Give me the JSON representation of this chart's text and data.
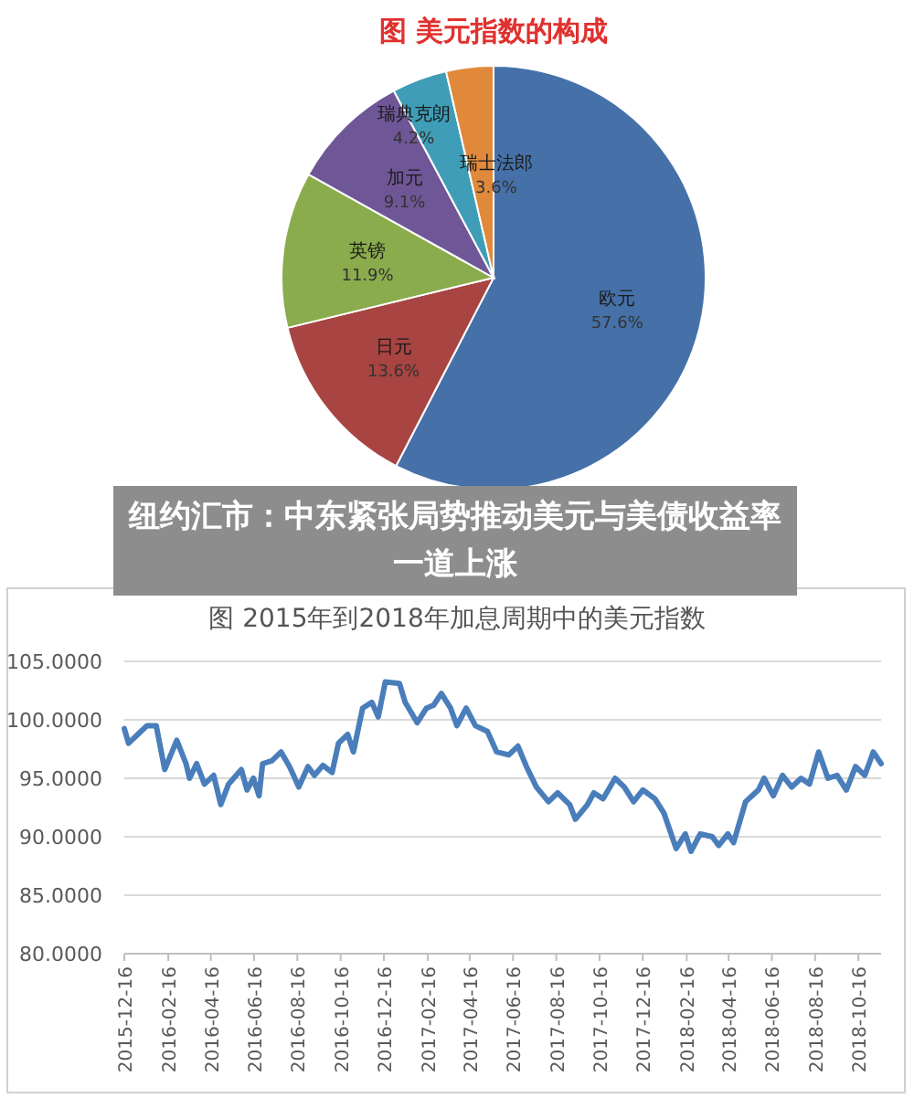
{
  "chart_data": [
    {
      "type": "pie",
      "title": "图 美元指数的构成",
      "categories": [
        "欧元",
        "日元",
        "英镑",
        "加元",
        "瑞典克朗",
        "瑞士法郎"
      ],
      "values": [
        57.6,
        13.6,
        11.9,
        9.1,
        4.2,
        3.6
      ],
      "colors": [
        "#4571a8",
        "#a84442",
        "#8aac4c",
        "#6f5797",
        "#3f9db7",
        "#e1893b"
      ],
      "value_labels": [
        "57.6%",
        "13.6%",
        "11.9%",
        "9.1%",
        "4.2%",
        "3.6%"
      ]
    },
    {
      "type": "line",
      "title": "图 2015年到2018年加息周期中的美元指数",
      "annotations": [
        "纽约汇市：中东紧张局势推动美元与美债收益率一道上涨"
      ],
      "grid": "y",
      "xlim": [
        "2015-12-16",
        "2018-11-17"
      ],
      "ylim": [
        80,
        105
      ],
      "yticks": [
        {
          "value": 80,
          "label": "80.0000"
        },
        {
          "value": 85,
          "label": "85.0000"
        },
        {
          "value": 90,
          "label": "90.0000"
        },
        {
          "value": 95,
          "label": "95.0000"
        },
        {
          "value": 100,
          "label": "100.0000"
        },
        {
          "value": 105,
          "label": "105.0000"
        }
      ],
      "xticks": [
        "2015-12-16",
        "2016-02-16",
        "2016-04-16",
        "2016-06-16",
        "2016-08-16",
        "2016-10-16",
        "2016-12-16",
        "2017-02-16",
        "2017-04-16",
        "2017-06-16",
        "2017-08-16",
        "2017-10-16",
        "2017-12-16",
        "2018-02-16",
        "2018-04-16",
        "2018-06-16",
        "2018-08-16",
        "2018-10-16"
      ],
      "series": [
        {
          "color": "#4a7ebb",
          "x": [
            "2015-12-16",
            "2015-12-22",
            "2016-01-04",
            "2016-01-17",
            "2016-01-30",
            "2016-02-07",
            "2016-02-11",
            "2016-02-28",
            "2016-03-12",
            "2016-03-17",
            "2016-03-27",
            "2016-04-07",
            "2016-04-20",
            "2016-04-30",
            "2016-05-11",
            "2016-05-29",
            "2016-06-06",
            "2016-06-15",
            "2016-06-23",
            "2016-06-28",
            "2016-07-11",
            "2016-07-24",
            "2016-08-05",
            "2016-08-18",
            "2016-08-31",
            "2016-09-09",
            "2016-09-21",
            "2016-10-04",
            "2016-10-13",
            "2016-10-26",
            "2016-11-03",
            "2016-11-16",
            "2016-11-29",
            "2016-12-08",
            "2016-12-18",
            "2017-01-07",
            "2017-01-15",
            "2017-02-01",
            "2017-02-14",
            "2017-02-24",
            "2017-03-07",
            "2017-03-20",
            "2017-03-29",
            "2017-04-11",
            "2017-04-24",
            "2017-05-11",
            "2017-05-24",
            "2017-06-10",
            "2017-06-23",
            "2017-07-05",
            "2017-07-19",
            "2017-08-05",
            "2017-08-18",
            "2017-09-04",
            "2017-09-12",
            "2017-09-29",
            "2017-10-08",
            "2017-10-21",
            "2017-11-07",
            "2017-11-20",
            "2017-12-03",
            "2017-12-16",
            "2018-01-02",
            "2018-01-15",
            "2018-02-01",
            "2018-02-14",
            "2018-02-22",
            "2018-03-07",
            "2018-03-24",
            "2018-04-02",
            "2018-04-15",
            "2018-04-23",
            "2018-05-10",
            "2018-05-28",
            "2018-06-05",
            "2018-06-18",
            "2018-07-01",
            "2018-07-14",
            "2018-07-27",
            "2018-08-08",
            "2018-08-21",
            "2018-09-03",
            "2018-09-16",
            "2018-09-29",
            "2018-10-12",
            "2018-10-25",
            "2018-11-06",
            "2018-11-17"
          ],
          "values": [
            99.25,
            98.0,
            98.75,
            99.5,
            99.5,
            97.0,
            95.75,
            98.25,
            96.25,
            95.0,
            96.25,
            94.5,
            95.25,
            92.75,
            94.5,
            95.75,
            94.0,
            95.0,
            93.5,
            96.25,
            96.5,
            97.25,
            96.0,
            94.25,
            96.0,
            95.25,
            96.1,
            95.5,
            98.0,
            98.75,
            97.25,
            101.0,
            101.5,
            100.25,
            103.25,
            103.1,
            101.5,
            99.75,
            101.0,
            101.25,
            102.25,
            101.0,
            99.5,
            101.0,
            99.5,
            99.0,
            97.25,
            97.0,
            97.75,
            96.0,
            94.25,
            93.0,
            93.75,
            92.75,
            91.5,
            92.75,
            93.75,
            93.25,
            95.0,
            94.25,
            93.0,
            94.0,
            93.25,
            92.0,
            89.0,
            90.25,
            88.75,
            90.25,
            90.0,
            89.25,
            90.25,
            89.5,
            93.0,
            94.0,
            95.0,
            93.5,
            95.25,
            94.25,
            95.0,
            94.5,
            97.25,
            95.0,
            95.25,
            94.0,
            96.0,
            95.25,
            97.25,
            96.25
          ]
        }
      ]
    }
  ]
}
